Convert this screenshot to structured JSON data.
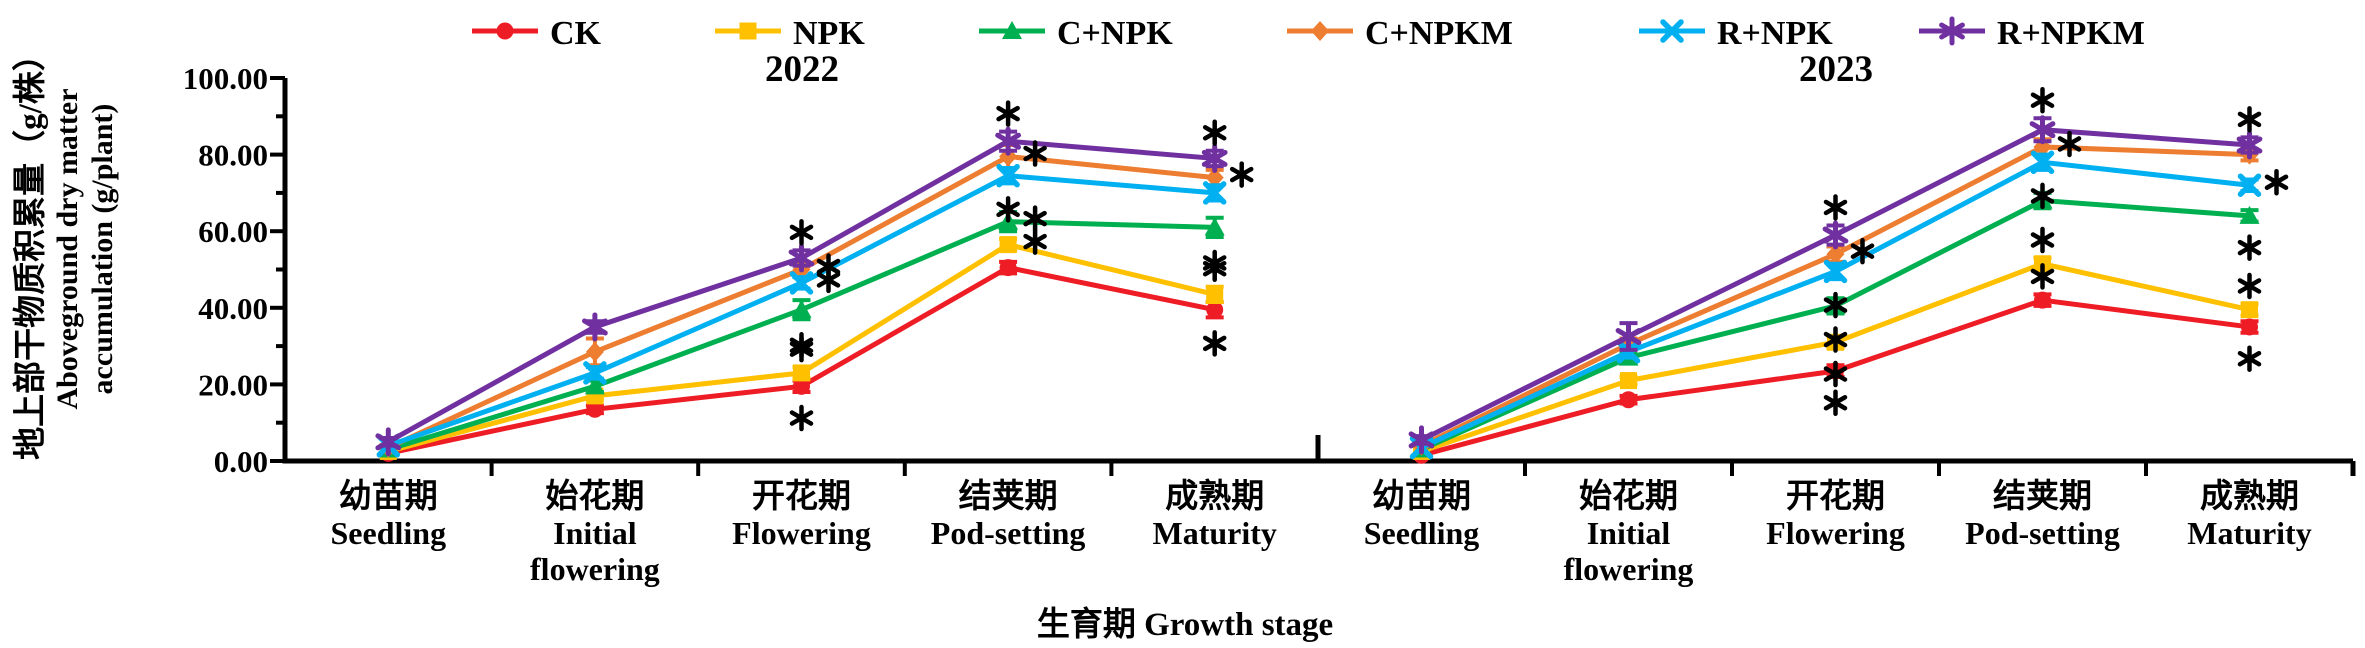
{
  "figure": {
    "y_title_zh": "地上部干物质积累量（g/株）",
    "y_title_en1": "Aboveground dry matter",
    "y_title_en2": "accumulation (g/plant)",
    "x_title": "生育期 Growth stage"
  },
  "legend": {
    "items": [
      {
        "label": "CK",
        "color": "#EE1C25",
        "marker": "circle"
      },
      {
        "label": "NPK",
        "color": "#FFC000",
        "marker": "square"
      },
      {
        "label": "C+NPK",
        "color": "#00B050",
        "marker": "triangle"
      },
      {
        "label": "C+NPKM",
        "color": "#ED7D31",
        "marker": "diamond"
      },
      {
        "label": "R+NPK",
        "color": "#00B0F0",
        "marker": "xcross"
      },
      {
        "label": "R+NPKM",
        "color": "#7030A0",
        "marker": "asterisk"
      }
    ]
  },
  "chart_data": {
    "type": "line",
    "title": "",
    "xlabel": "生育期 Growth stage",
    "ylabel": "地上部干物质积累量（g/株） Aboveground dry matter accumulation (g/plant)",
    "ylim": [
      0,
      100
    ],
    "y_tick_labels": [
      "0.00",
      "20.00",
      "40.00",
      "60.00",
      "80.00",
      "100.00"
    ],
    "grid": false,
    "legend_position": "top",
    "significance_symbol": "*",
    "stages": [
      {
        "zh": "幼苗期",
        "en": [
          "Seedling"
        ]
      },
      {
        "zh": "始花期",
        "en": [
          "Initial",
          "flowering"
        ]
      },
      {
        "zh": "开花期",
        "en": [
          "Flowering"
        ]
      },
      {
        "zh": "结荚期",
        "en": [
          "Pod-setting"
        ]
      },
      {
        "zh": "成熟期",
        "en": [
          "Maturity"
        ]
      }
    ],
    "panels": [
      {
        "year": "2022",
        "series": [
          {
            "name": "CK",
            "values": [
              2.0,
              13.5,
              19.5,
              50.5,
              39.5
            ],
            "err": [
              0.5,
              1.0,
              1.5,
              1.5,
              2.0
            ]
          },
          {
            "name": "NPK",
            "values": [
              2.5,
              17.0,
              23.0,
              56.5,
              43.5
            ],
            "err": [
              0.5,
              1.0,
              1.5,
              1.5,
              2.0
            ]
          },
          {
            "name": "C+NPK",
            "values": [
              3.0,
              19.5,
              39.5,
              62.5,
              61.0
            ],
            "err": [
              0.5,
              1.5,
              2.5,
              2.5,
              2.5
            ]
          },
          {
            "name": "C+NPKM",
            "values": [
              3.5,
              28.5,
              50.0,
              79.5,
              74.0
            ],
            "err": [
              0.5,
              3.5,
              2.0,
              3.0,
              2.0
            ]
          },
          {
            "name": "R+NPK",
            "values": [
              4.0,
              23.0,
              46.5,
              74.5,
              70.0
            ],
            "err": [
              0.5,
              1.5,
              1.5,
              2.0,
              2.0
            ]
          },
          {
            "name": "R+NPKM",
            "values": [
              5.0,
              35.0,
              53.0,
              83.5,
              79.0
            ],
            "err": [
              1.0,
              1.5,
              2.0,
              2.5,
              2.0
            ]
          }
        ],
        "significance": [
          {
            "series": "R+NPKM",
            "stage": 2,
            "pos": "above"
          },
          {
            "series": "C+NPKM",
            "stage": 2,
            "pos": "right"
          },
          {
            "series": "R+NPK",
            "stage": 2,
            "pos": "right"
          },
          {
            "series": "C+NPK",
            "stage": 2,
            "pos": "below"
          },
          {
            "series": "NPK",
            "stage": 2,
            "pos": "above"
          },
          {
            "series": "CK",
            "stage": 2,
            "pos": "below"
          },
          {
            "series": "R+NPKM",
            "stage": 3,
            "pos": "above"
          },
          {
            "series": "C+NPKM",
            "stage": 3,
            "pos": "right"
          },
          {
            "series": "R+NPK",
            "stage": 3,
            "pos": "below"
          },
          {
            "series": "C+NPK",
            "stage": 3,
            "pos": "right"
          },
          {
            "series": "NPK",
            "stage": 3,
            "pos": "right"
          },
          {
            "series": "R+NPKM",
            "stage": 4,
            "pos": "above"
          },
          {
            "series": "C+NPKM",
            "stage": 4,
            "pos": "right"
          },
          {
            "series": "C+NPK",
            "stage": 4,
            "pos": "below"
          },
          {
            "series": "NPK",
            "stage": 4,
            "pos": "above"
          },
          {
            "series": "CK",
            "stage": 4,
            "pos": "below"
          }
        ]
      },
      {
        "year": "2023",
        "series": [
          {
            "name": "CK",
            "values": [
              1.5,
              16.0,
              23.5,
              42.0,
              35.0
            ],
            "err": [
              0.5,
              1.0,
              1.5,
              1.5,
              1.5
            ]
          },
          {
            "name": "NPK",
            "values": [
              2.5,
              21.0,
              31.0,
              51.5,
              39.5
            ],
            "err": [
              0.5,
              1.0,
              1.5,
              1.5,
              1.5
            ]
          },
          {
            "name": "C+NPK",
            "values": [
              3.0,
              27.0,
              40.5,
              68.0,
              64.0
            ],
            "err": [
              0.5,
              1.5,
              2.0,
              2.0,
              1.5
            ]
          },
          {
            "name": "C+NPKM",
            "values": [
              4.0,
              30.5,
              54.0,
              82.0,
              80.0
            ],
            "err": [
              0.5,
              1.5,
              2.0,
              2.0,
              1.5
            ]
          },
          {
            "name": "R+NPK",
            "values": [
              3.5,
              28.5,
              49.5,
              78.0,
              72.0
            ],
            "err": [
              0.5,
              1.5,
              2.0,
              2.0,
              1.5
            ]
          },
          {
            "name": "R+NPKM",
            "values": [
              5.5,
              32.5,
              59.0,
              86.5,
              82.5
            ],
            "err": [
              1.0,
              3.5,
              2.5,
              3.0,
              2.0
            ]
          }
        ],
        "significance": [
          {
            "series": "R+NPKM",
            "stage": 2,
            "pos": "above"
          },
          {
            "series": "C+NPKM",
            "stage": 2,
            "pos": "right"
          },
          {
            "series": "R+NPK",
            "stage": 2,
            "pos": "below"
          },
          {
            "series": "C+NPK",
            "stage": 2,
            "pos": "below"
          },
          {
            "series": "NPK",
            "stage": 2,
            "pos": "below"
          },
          {
            "series": "CK",
            "stage": 2,
            "pos": "below"
          },
          {
            "series": "R+NPKM",
            "stage": 3,
            "pos": "above"
          },
          {
            "series": "C+NPKM",
            "stage": 3,
            "pos": "right"
          },
          {
            "series": "R+NPK",
            "stage": 3,
            "pos": "below"
          },
          {
            "series": "NPK",
            "stage": 3,
            "pos": "above"
          },
          {
            "series": "CK",
            "stage": 3,
            "pos": "above"
          },
          {
            "series": "R+NPKM",
            "stage": 4,
            "pos": "above"
          },
          {
            "series": "R+NPK",
            "stage": 4,
            "pos": "right"
          },
          {
            "series": "C+NPK",
            "stage": 4,
            "pos": "below"
          },
          {
            "series": "NPK",
            "stage": 4,
            "pos": "above"
          },
          {
            "series": "CK",
            "stage": 4,
            "pos": "below"
          }
        ]
      }
    ]
  }
}
